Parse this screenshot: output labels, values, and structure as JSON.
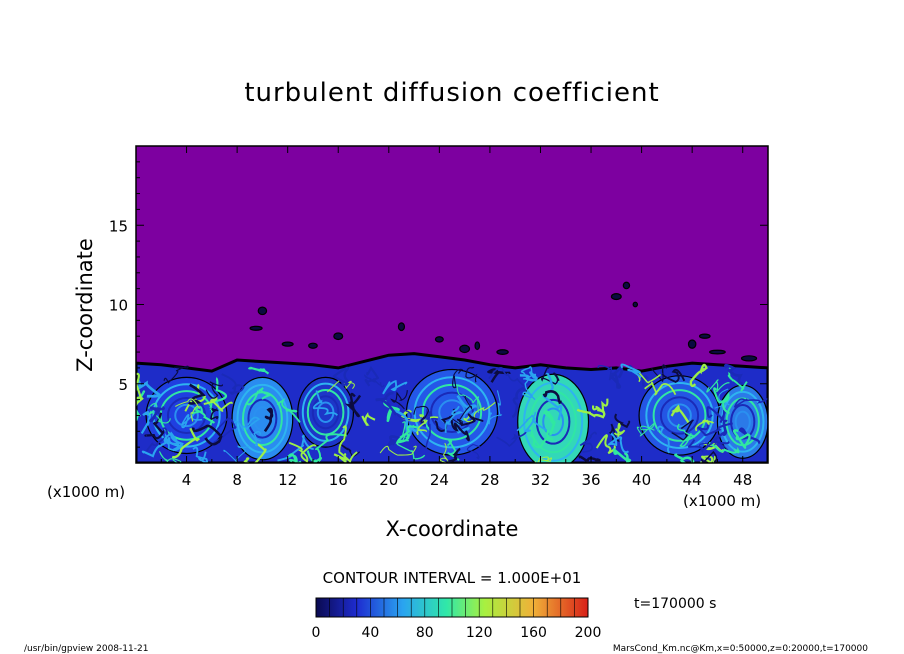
{
  "chart_data": {
    "type": "heatmap",
    "title": "turbulent diffusion coefficient",
    "xlabel": "X-coordinate",
    "ylabel": "Z-coordinate",
    "x_unit_left": "(x1000 m)",
    "x_unit_right": "(x1000 m)",
    "xlim": [
      0,
      50
    ],
    "ylim": [
      0,
      20
    ],
    "x_ticks": [
      4,
      8,
      12,
      16,
      20,
      24,
      28,
      32,
      36,
      40,
      44,
      48
    ],
    "y_ticks": [
      5,
      10,
      15
    ],
    "contour_interval_text": "CONTOUR INTERVAL = 1.000E+01",
    "colorbar": {
      "ticks": [
        0,
        40,
        80,
        120,
        160,
        200
      ],
      "range": [
        0,
        200
      ],
      "colors": [
        "#0a0a50",
        "#2030d8",
        "#28a8f0",
        "#30e8a0",
        "#a8f040",
        "#f0c038",
        "#e03020"
      ]
    },
    "time_text": "t=170000 s",
    "boundary_layer_top_km": [
      [
        0,
        6.3
      ],
      [
        2,
        6.2
      ],
      [
        4,
        6.0
      ],
      [
        6,
        5.8
      ],
      [
        8,
        6.5
      ],
      [
        10,
        6.4
      ],
      [
        12,
        6.3
      ],
      [
        14,
        6.2
      ],
      [
        16,
        6.0
      ],
      [
        18,
        6.4
      ],
      [
        20,
        6.8
      ],
      [
        22,
        6.9
      ],
      [
        24,
        6.7
      ],
      [
        26,
        6.5
      ],
      [
        28,
        6.2
      ],
      [
        30,
        6.0
      ],
      [
        32,
        6.2
      ],
      [
        34,
        6.0
      ],
      [
        36,
        5.9
      ],
      [
        38,
        6.0
      ],
      [
        40,
        5.8
      ],
      [
        42,
        6.1
      ],
      [
        44,
        6.3
      ],
      [
        46,
        6.2
      ],
      [
        48,
        6.1
      ],
      [
        50,
        6.0
      ]
    ],
    "upper_field_color": "#7d00a0"
  },
  "footer": {
    "left": "/usr/bin/gpview   2008-11-21",
    "right": "MarsCond_Km.nc@Km,x=0:50000,z=0:20000,t=170000"
  }
}
